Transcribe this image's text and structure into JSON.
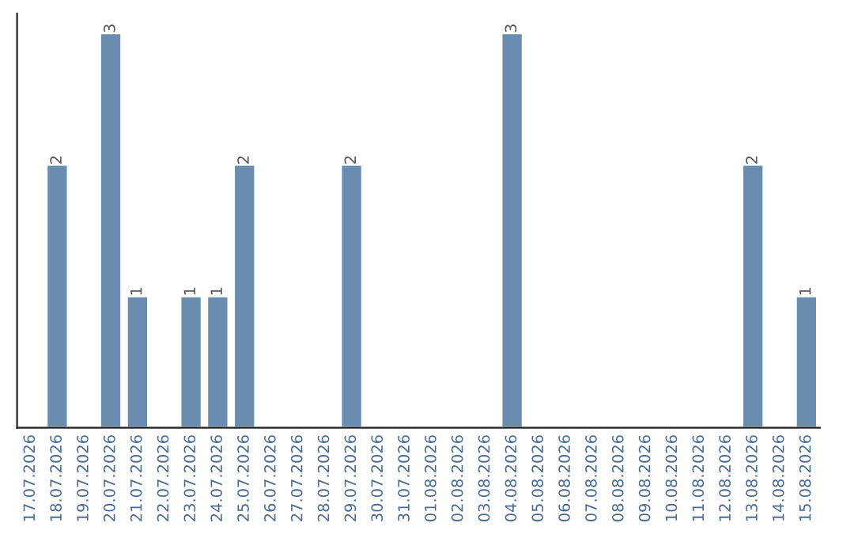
{
  "chart_data": {
    "type": "bar",
    "categories": [
      "17.07.2026",
      "18.07.2026",
      "19.07.2026",
      "20.07.2026",
      "21.07.2026",
      "22.07.2026",
      "23.07.2026",
      "24.07.2026",
      "25.07.2026",
      "26.07.2026",
      "27.07.2026",
      "28.07.2026",
      "29.07.2026",
      "30.07.2026",
      "31.07.2026",
      "01.08.2026",
      "02.08.2026",
      "03.08.2026",
      "04.08.2026",
      "05.08.2026",
      "06.08.2026",
      "07.08.2026",
      "08.08.2026",
      "09.08.2026",
      "10.08.2026",
      "11.08.2026",
      "12.08.2026",
      "13.08.2026",
      "14.08.2026",
      "15.08.2026"
    ],
    "values": [
      null,
      2,
      null,
      3,
      1,
      null,
      1,
      1,
      2,
      null,
      null,
      null,
      2,
      null,
      null,
      null,
      null,
      null,
      3,
      null,
      null,
      null,
      null,
      null,
      null,
      null,
      null,
      2,
      null,
      1
    ],
    "value_labels": [
      null,
      "2",
      null,
      "3",
      "1",
      null,
      "1",
      "1",
      "2",
      null,
      null,
      null,
      "2",
      null,
      null,
      null,
      null,
      null,
      "3",
      null,
      null,
      null,
      null,
      null,
      null,
      null,
      null,
      "2",
      null,
      "1"
    ],
    "color": "#6a8caf",
    "ylim": [
      0,
      3.15
    ],
    "tick_labels": "x",
    "grid": false,
    "legend": false
  }
}
